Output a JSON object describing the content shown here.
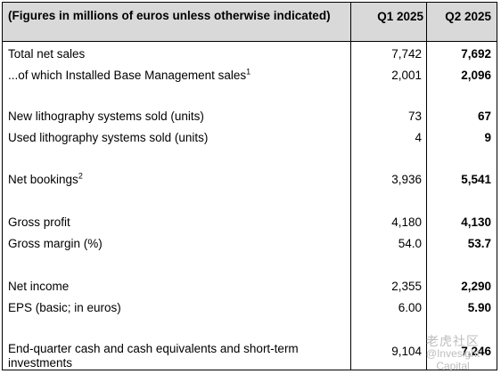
{
  "header": {
    "label": "(Figures in millions of euros unless otherwise indicated)",
    "col_q1": "Q1 2025",
    "col_q2": "Q2 2025"
  },
  "rows": [
    {
      "label": "Total net sales",
      "sup": "",
      "q1": "7,742",
      "q2": "7,692"
    },
    {
      "label": "...of which Installed Base Management sales",
      "sup": "1",
      "q1": "2,001",
      "q2": "2,096"
    },
    {
      "label": "New lithography systems sold (units)",
      "sup": "",
      "q1": "73",
      "q2": "67"
    },
    {
      "label": "Used lithography systems sold (units)",
      "sup": "",
      "q1": "4",
      "q2": "9"
    },
    {
      "label": "Net bookings",
      "sup": "2",
      "q1": "3,936",
      "q2": "5,541"
    },
    {
      "label": "Gross profit",
      "sup": "",
      "q1": "4,180",
      "q2": "4,130"
    },
    {
      "label": "Gross margin (%)",
      "sup": "",
      "q1": "54.0",
      "q2": "53.7"
    },
    {
      "label": "Net income",
      "sup": "",
      "q1": "2,355",
      "q2": "2,290"
    },
    {
      "label": "EPS (basic; in euros)",
      "sup": "",
      "q1": "6.00",
      "q2": "5.90"
    },
    {
      "label": "End-quarter cash and cash equivalents and short-term investments",
      "sup": "",
      "q1": "9,104",
      "q2": "7,246"
    }
  ],
  "watermark": {
    "line1": "老虎社区",
    "line2": "@Invesight Capital"
  }
}
